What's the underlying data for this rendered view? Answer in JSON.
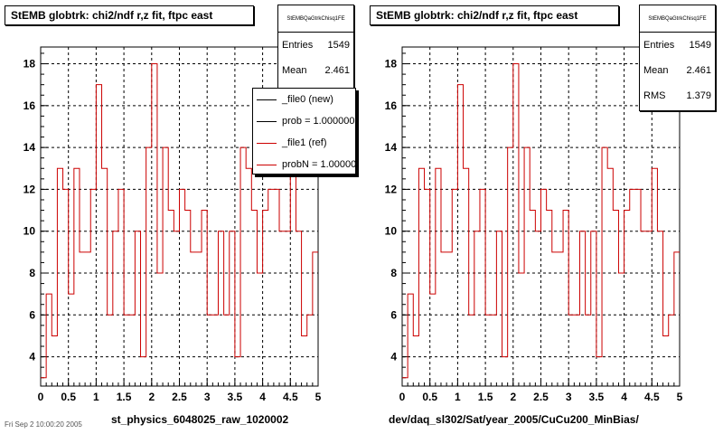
{
  "chart_data": [
    {
      "type": "histogram",
      "title": "StEMB globtrk: chi2/ndf r,z fit, ftpc east",
      "xlabel": "st_physics_6048025_raw_1020002",
      "xlim": [
        0,
        5
      ],
      "ylim": [
        2.6,
        18.8
      ],
      "xticks": [
        "0",
        "0.5",
        "1",
        "1.5",
        "2",
        "2.5",
        "3",
        "3.5",
        "4",
        "4.5",
        "5"
      ],
      "yticks": [
        "4",
        "6",
        "8",
        "10",
        "12",
        "14",
        "16",
        "18"
      ],
      "grid": true,
      "bin_width": 0.1,
      "series": [
        {
          "name": "_file1 (ref)",
          "color": "#cc0000",
          "values": [
            3,
            7,
            5,
            13,
            12,
            7,
            13,
            9,
            9,
            12,
            17,
            13,
            6,
            10,
            12,
            6,
            6,
            10,
            4,
            14,
            18,
            8,
            14,
            11,
            10,
            12,
            11,
            9,
            9,
            11,
            6,
            6,
            10,
            6,
            10,
            4,
            14,
            13,
            11,
            8,
            11,
            12,
            12,
            10,
            10,
            13,
            10,
            5,
            6,
            9
          ]
        }
      ],
      "stats": {
        "name": "StEMBQaGtrkChisq1FE",
        "entries_label": "Entries",
        "entries": "1549",
        "mean_label": "Mean",
        "mean": "2.461"
      },
      "legend": [
        {
          "label": "_file0 (new)",
          "color": "#000000"
        },
        {
          "label": "prob = 1.000000",
          "color": "#000000"
        },
        {
          "label": "_file1 (ref)",
          "color": "#cc0000"
        },
        {
          "label": "probN = 1.000000",
          "color": "#cc0000"
        }
      ]
    },
    {
      "type": "histogram",
      "title": "StEMB globtrk: chi2/ndf r,z fit, ftpc east",
      "xlabel": "dev/daq_sl302/Sat/year_2005/CuCu200_MinBias/",
      "xlim": [
        0,
        5
      ],
      "ylim": [
        2.6,
        18.8
      ],
      "xticks": [
        "0",
        "0.5",
        "1",
        "1.5",
        "2",
        "2.5",
        "3",
        "3.5",
        "4",
        "4.5",
        "5"
      ],
      "yticks": [
        "4",
        "6",
        "8",
        "10",
        "12",
        "14",
        "16",
        "18"
      ],
      "grid": true,
      "bin_width": 0.1,
      "series": [
        {
          "name": "_file1 (ref)",
          "color": "#cc0000",
          "values": [
            3,
            7,
            5,
            13,
            12,
            7,
            13,
            9,
            9,
            12,
            17,
            13,
            6,
            10,
            12,
            6,
            6,
            10,
            4,
            14,
            18,
            8,
            14,
            11,
            10,
            12,
            11,
            9,
            9,
            11,
            6,
            6,
            10,
            6,
            10,
            4,
            14,
            13,
            11,
            8,
            11,
            12,
            12,
            10,
            10,
            13,
            10,
            5,
            6,
            9
          ]
        }
      ],
      "stats": {
        "name": "StEMBQaGtrkChisq1FE",
        "entries_label": "Entries",
        "entries": "1549",
        "mean_label": "Mean",
        "mean": "2.461",
        "rms_label": "RMS",
        "rms": "1.379"
      }
    }
  ],
  "footer": "Fri Sep 2 10:00:20 2005"
}
